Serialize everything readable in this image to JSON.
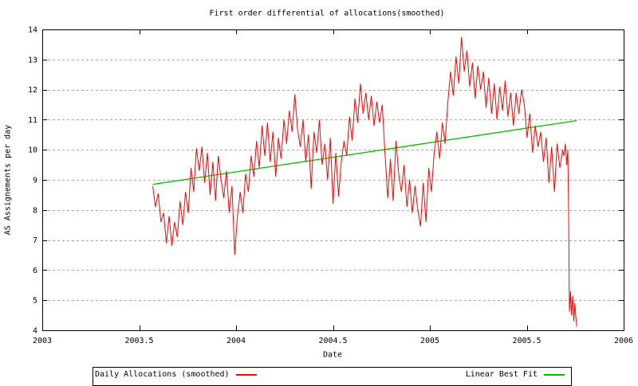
{
  "chart_data": {
    "type": "line",
    "title": "First order differential of allocations(smoothed)",
    "xlabel": "Date",
    "ylabel": "AS Assignements per day",
    "xlim": [
      2003,
      2006
    ],
    "ylim": [
      4,
      14
    ],
    "x_ticks": [
      2003,
      2003.5,
      2004,
      2004.5,
      2005,
      2005.5,
      2006
    ],
    "y_ticks": [
      4,
      5,
      6,
      7,
      8,
      9,
      10,
      11,
      12,
      13,
      14
    ],
    "grid": "horizontal-dashed",
    "grid_color": "#a8a8a8",
    "border_color": "#000000",
    "legend_position": "bottom-outside",
    "series": [
      {
        "name": "Daily Allocations (smoothed)",
        "color": "#ff0000",
        "x_start": 2003.57,
        "x_step": 0.0141,
        "values": [
          8.8,
          8.1,
          8.55,
          7.6,
          7.9,
          6.9,
          7.8,
          6.8,
          7.6,
          7.1,
          8.3,
          7.5,
          8.6,
          7.9,
          9.4,
          8.6,
          10.05,
          9.3,
          10.1,
          8.9,
          9.9,
          8.5,
          9.6,
          8.3,
          9.8,
          9.0,
          8.4,
          9.3,
          7.9,
          8.8,
          6.5,
          7.8,
          8.6,
          7.9,
          9.2,
          8.6,
          9.8,
          9.1,
          10.3,
          9.4,
          10.8,
          9.8,
          10.9,
          9.6,
          10.6,
          9.1,
          10.4,
          9.7,
          11.0,
          10.2,
          11.3,
          10.6,
          11.85,
          10.7,
          10.1,
          11.0,
          9.6,
          10.5,
          8.7,
          10.6,
          9.9,
          11.0,
          9.5,
          10.2,
          9.0,
          10.4,
          8.2,
          9.9,
          8.45,
          9.6,
          10.3,
          9.8,
          11.1,
          10.3,
          11.7,
          10.9,
          12.2,
          11.2,
          11.9,
          11.0,
          11.8,
          10.8,
          11.6,
          10.9,
          11.5,
          9.9,
          8.4,
          9.7,
          8.3,
          10.3,
          9.2,
          8.6,
          9.5,
          8.1,
          9.0,
          7.9,
          8.8,
          8.0,
          7.45,
          8.9,
          7.6,
          9.4,
          8.6,
          9.9,
          10.6,
          9.7,
          10.9,
          10.2,
          11.6,
          12.6,
          11.8,
          13.1,
          12.2,
          13.75,
          12.6,
          13.3,
          12.1,
          12.9,
          11.7,
          12.8,
          12.0,
          12.6,
          11.4,
          12.4,
          11.2,
          12.2,
          11.0,
          12.1,
          11.3,
          12.3,
          11.1,
          11.9,
          10.8,
          11.9,
          11.2,
          12.0,
          11.5,
          10.4,
          11.2,
          9.9,
          10.8,
          10.1,
          10.6,
          9.6,
          10.4,
          8.9,
          10.1,
          8.6,
          10.2,
          9.4,
          10.0
        ],
        "tail": [
          [
            2005.692,
            9.8
          ],
          [
            2005.699,
            10.2
          ],
          [
            2005.706,
            9.5
          ],
          [
            2005.712,
            10.0
          ],
          [
            2005.716,
            8.0
          ],
          [
            2005.72,
            4.62
          ],
          [
            2005.726,
            5.3
          ],
          [
            2005.731,
            4.5
          ],
          [
            2005.737,
            5.15
          ],
          [
            2005.743,
            4.3
          ],
          [
            2005.748,
            4.9
          ],
          [
            2005.753,
            4.45
          ],
          [
            2005.758,
            4.12
          ]
        ]
      },
      {
        "name": "Linear Best Fit",
        "color": "#00c000",
        "points": [
          [
            2003.57,
            8.85
          ],
          [
            2005.758,
            10.97
          ]
        ]
      }
    ]
  }
}
